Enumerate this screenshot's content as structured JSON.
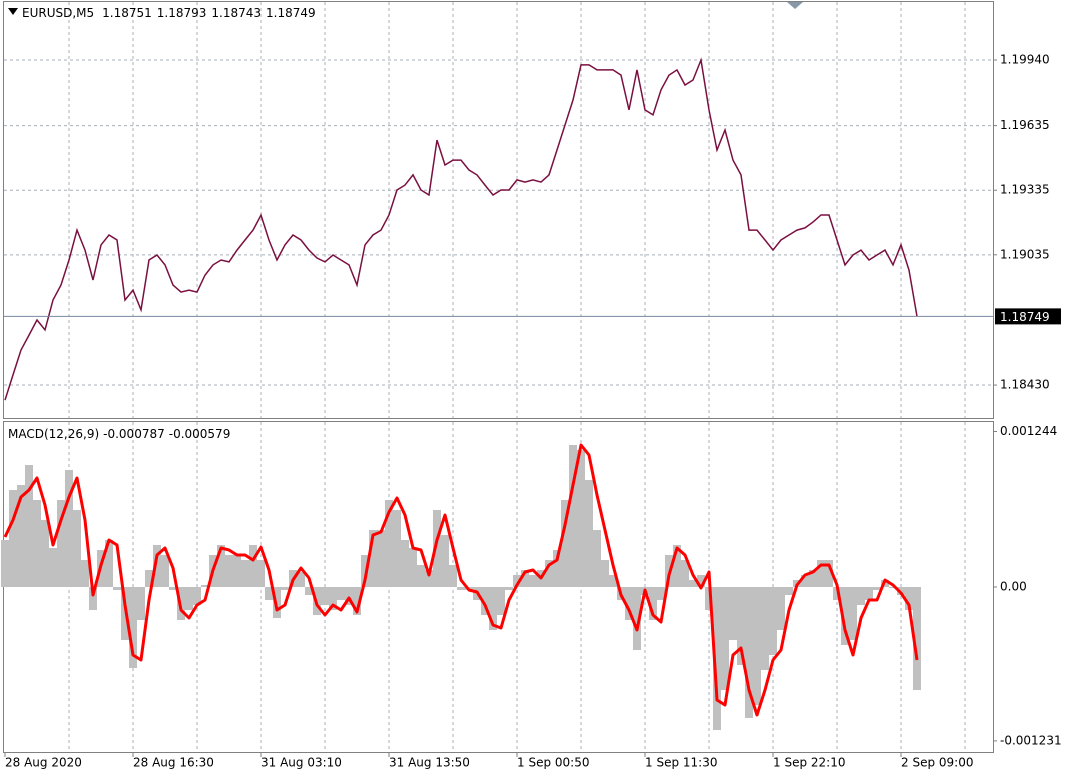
{
  "chart_data": [
    {
      "type": "line",
      "title": "EURUSD,M5",
      "last_bar": [
        1.18751,
        1.18793,
        1.18743,
        1.18749
      ],
      "current_price": 1.18749,
      "color": "#7a1040",
      "grid": true,
      "ylim": [
        1.18277,
        1.20214
      ],
      "yticks": [
        {
          "value": 1.1994,
          "label": "1.19940"
        },
        1.19635,
        1.19335,
        1.19035,
        {
          "value": 1.1843,
          "label": "1.18430"
        }
      ],
      "values": [
        1.1836,
        1.18477,
        1.18593,
        1.18662,
        1.18732,
        1.18686,
        1.18825,
        1.18895,
        1.19011,
        1.1915,
        1.19057,
        1.18918,
        1.19081,
        1.19127,
        1.19104,
        1.18825,
        1.18871,
        1.18779,
        1.19011,
        1.19034,
        1.18988,
        1.18895,
        1.18862,
        1.18871,
        1.18862,
        1.18941,
        1.18988,
        1.19011,
        1.19002,
        1.19057,
        1.19104,
        1.1915,
        1.1922,
        1.19104,
        1.19011,
        1.19081,
        1.19127,
        1.19104,
        1.19057,
        1.1902,
        1.19002,
        1.19034,
        1.19011,
        1.18988,
        1.18895,
        1.19081,
        1.19127,
        1.1915,
        1.1922,
        1.19336,
        1.19359,
        1.19406,
        1.19336,
        1.19313,
        1.19568,
        1.19452,
        1.19475,
        1.19475,
        1.19429,
        1.19406,
        1.19359,
        1.19313,
        1.19336,
        1.19336,
        1.19383,
        1.19373,
        1.19383,
        1.19373,
        1.19406,
        1.19522,
        1.19638,
        1.19754,
        1.19917,
        1.19917,
        1.19894,
        1.19894,
        1.19894,
        1.1987,
        1.19708,
        1.19894,
        1.19708,
        1.19685,
        1.19801,
        1.1987,
        1.19894,
        1.19824,
        1.19847,
        1.1994,
        1.19708,
        1.19522,
        1.19615,
        1.19475,
        1.19406,
        1.1915,
        1.1915,
        1.19104,
        1.19057,
        1.19104,
        1.19127,
        1.1915,
        1.1916,
        1.19187,
        1.1922,
        1.1922,
        1.19104,
        1.18988,
        1.19034,
        1.19057,
        1.19011,
        1.19034,
        1.19057,
        1.18988,
        1.19081,
        1.18964,
        1.18749
      ]
    },
    {
      "type": "macd",
      "title": "MACD(12,26,9)",
      "macd_value": -0.000787,
      "signal_value": -0.000579,
      "ylim": [
        -0.00132,
        0.001328
      ],
      "yticks": [
        0.001244,
        {
          "value": 0,
          "label": "0.00"
        },
        -0.001231
      ],
      "categories": [
        "28 Aug 2020",
        null,
        null,
        null,
        null,
        null,
        null,
        null,
        null,
        null,
        null,
        null,
        null,
        null,
        null,
        null,
        "28 Aug 16:30",
        null,
        null,
        null,
        null,
        null,
        null,
        null,
        null,
        null,
        null,
        null,
        null,
        null,
        null,
        null,
        "31 Aug 03:10",
        null,
        null,
        null,
        null,
        null,
        null,
        null,
        null,
        null,
        null,
        null,
        null,
        null,
        null,
        null,
        "31 Aug 13:50",
        null,
        null,
        null,
        null,
        null,
        null,
        null,
        null,
        null,
        null,
        null,
        null,
        null,
        null,
        null,
        "1 Sep 00:50",
        null,
        null,
        null,
        null,
        null,
        null,
        null,
        null,
        null,
        null,
        null,
        null,
        null,
        null,
        null,
        "1 Sep 11:30",
        null,
        null,
        null,
        null,
        null,
        null,
        null,
        null,
        null,
        null,
        null,
        null,
        null,
        null,
        null,
        "1 Sep 22:10",
        null,
        null,
        null,
        null,
        null,
        null,
        null,
        null,
        null,
        null,
        null,
        null,
        null,
        null,
        null,
        "2 Sep 09:00",
        null,
        null
      ],
      "series": [
        {
          "color": "#c0c0c0",
          "values": [
            0.000376,
            0.000776,
            0.000816,
            0.000976,
            0.000696,
            0.000536,
            0.000312,
            0.000696,
            0.000936,
            0.000616,
            0.000216,
            -0.000184,
            0.000296,
            0.000376,
            -2.4e-05,
            -0.000424,
            -0.000648,
            -0.000264,
            0.000136,
            0.000336,
            0.000256,
            -2.4e-05,
            -0.000264,
            -0.000184,
            -0.000144,
            1.6e-05,
            0.000256,
            0.000336,
            0.000256,
            0.000256,
            0.000216,
            0.000336,
            0.000216,
            -0.000104,
            -0.000248,
            -2.4e-05,
            0.000136,
            0.00012,
            -6.4e-05,
            -0.000224,
            -0.000144,
            -0.000184,
            -0.000104,
            -0.000144,
            -0.000224,
            0.000256,
            0.000456,
            0.000456,
            0.000696,
            0.000616,
            0.000376,
            0.000312,
            0.000176,
            0.000136,
            0.000616,
            0.000416,
            0.000176,
            -2.4e-05,
            -2.4e-05,
            -0.000104,
            -0.000224,
            -0.000344,
            -0.000224,
            -2.4e-05,
            9.6e-05,
            0.000136,
            9.6e-05,
            0.000136,
            0.000216,
            0.000296,
            0.000696,
            0.001136,
            0.001096,
            0.000856,
            0.000456,
            0.000216,
            9.6e-05,
            -0.000104,
            -0.000264,
            -0.000504,
            -6.4e-05,
            -0.000264,
            -0.000104,
            0.000256,
            0.000336,
            0.000216,
            5.6e-05,
            9.6e-05,
            -0.000184,
            -0.001144,
            -0.000824,
            -0.000424,
            -0.000624,
            -0.001048,
            -0.000944,
            -0.000664,
            -0.000544,
            -0.000344,
            -6.4e-05,
            5.6e-05,
            9.6e-05,
            0.000136,
            0.000216,
            0.000216,
            -0.000104,
            -0.000464,
            -0.000424,
            -0.000144,
            -0.000104,
            -2.4e-05,
            5.6e-05,
            -8e-06,
            -6.4e-05,
            -0.000184,
            -0.000824
          ]
        },
        {
          "color": "#ff0000",
          "values": [
            0.0004,
            0.000536,
            0.00072,
            0.000776,
            0.000872,
            0.000656,
            0.000336,
            0.000536,
            0.00072,
            0.000872,
            0.000536,
            -6.4e-05,
            0.000176,
            0.000376,
            0.000336,
            -0.000144,
            -0.000544,
            -0.000584,
            -0.000104,
            0.000256,
            0.000312,
            0.000152,
            -0.000184,
            -0.000248,
            -0.000144,
            -0.000104,
            0.000136,
            0.000312,
            0.000296,
            0.000256,
            0.000256,
            0.000216,
            0.00032,
            0.000136,
            -0.000184,
            -0.000144,
            5.6e-05,
            0.000152,
            7.2e-05,
            -0.000144,
            -0.000224,
            -0.000144,
            -0.000184,
            -8.8e-05,
            -0.0002,
            5.6e-05,
            0.000416,
            0.00044,
            0.0006,
            0.000712,
            0.000576,
            0.000312,
            0.000296,
            9.6e-05,
            0.000376,
            0.000576,
            0.000312,
            5.6e-05,
            -2.4e-05,
            -4e-05,
            -0.000144,
            -0.000304,
            -0.000328,
            -0.000104,
            1.6e-05,
            0.00012,
            0.000136,
            7.2e-05,
            0.000176,
            0.000216,
            0.000496,
            0.000816,
            0.001136,
            0.001056,
            0.000736,
            0.000456,
            0.000176,
            -6.4e-05,
            -0.000184,
            -0.000344,
            -2.4e-05,
            -0.000224,
            -0.00028,
            9.6e-05,
            0.000312,
            0.000256,
            9.6e-05,
            -8e-06,
            0.00012,
            -0.000904,
            -0.000944,
            -0.000544,
            -0.000488,
            -0.000824,
            -0.001024,
            -0.000824,
            -0.000584,
            -0.000504,
            -0.000184,
            1.6e-05,
            9.6e-05,
            0.00012,
            0.000176,
            0.000176,
            1.6e-05,
            -0.000344,
            -0.000544,
            -0.000248,
            -0.000104,
            -0.000104,
            5.6e-05,
            1.6e-05,
            -4.8e-05,
            -0.000144,
            -0.000584
          ]
        }
      ]
    }
  ]
}
